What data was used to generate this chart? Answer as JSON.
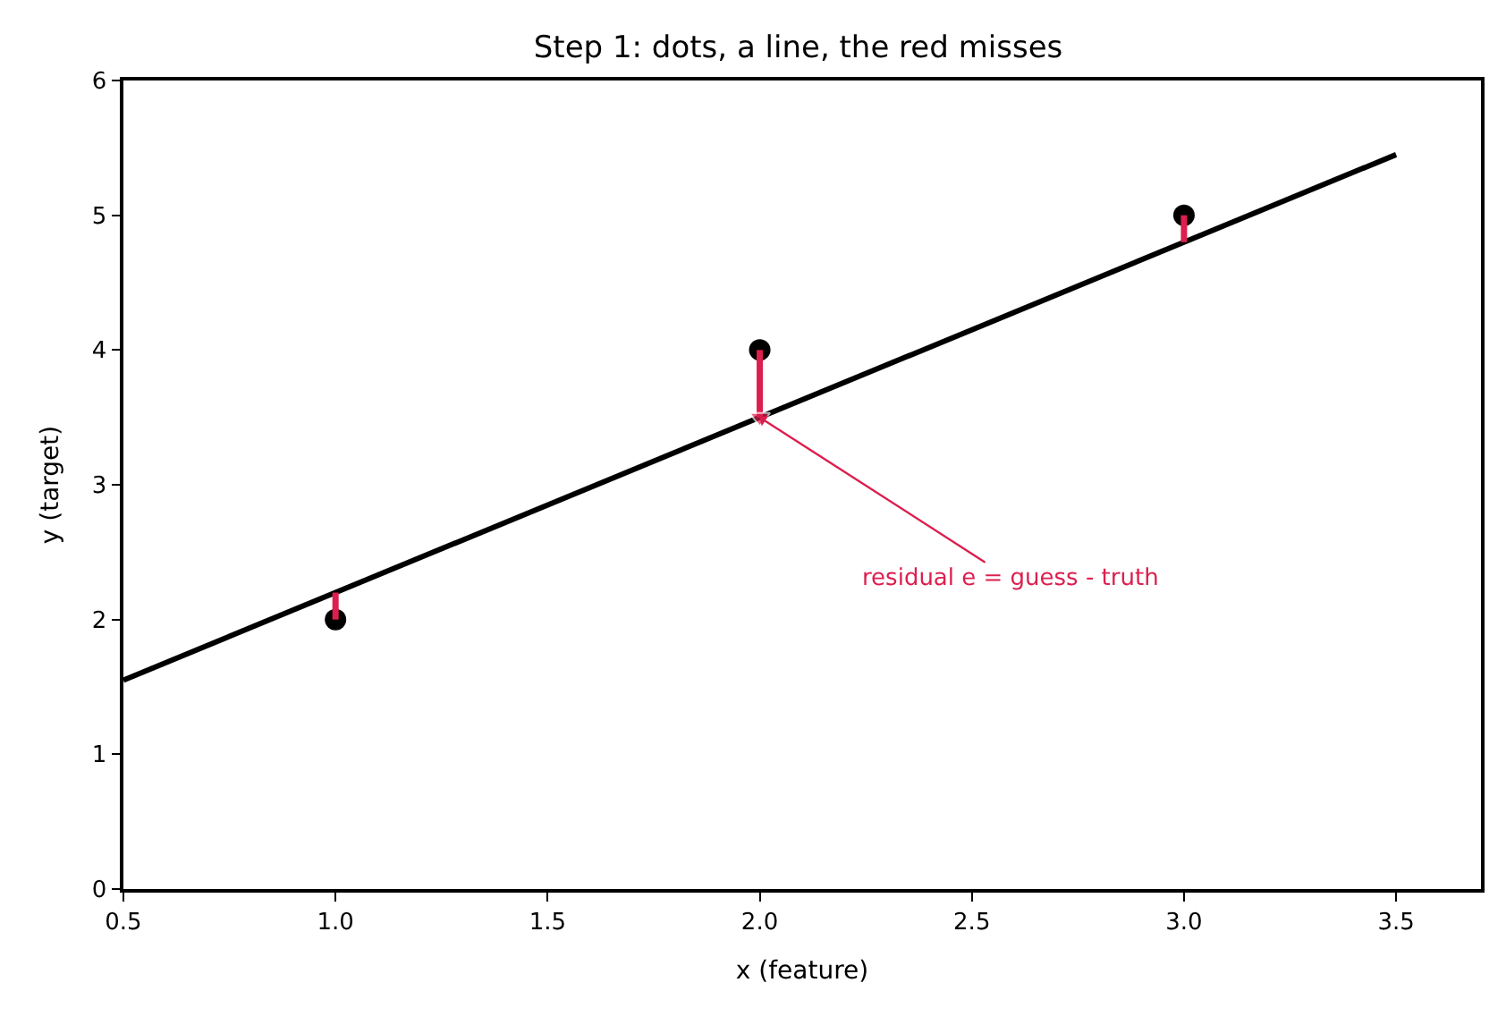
{
  "chart_data": {
    "type": "scatter",
    "title": "Step 1: dots, a line, the red misses",
    "xlabel": "x (feature)",
    "ylabel": "y (target)",
    "series": [
      {
        "color": "#000000",
        "x": [
          1.0,
          2.0,
          3.0
        ],
        "values": [
          2,
          4,
          5
        ],
        "marker": "circle"
      },
      {
        "type": "line",
        "color": "#000000",
        "x": [
          0.5,
          3.5
        ],
        "values": [
          1.55,
          5.45
        ],
        "marker": "none"
      },
      {
        "type": "line",
        "color": "#dc1f4e",
        "x": [
          1.0,
          1.0
        ],
        "values": [
          2,
          2.2
        ],
        "marker": "none"
      },
      {
        "type": "line",
        "color": "#dc1f4e",
        "x": [
          2.0,
          2.0
        ],
        "values": [
          4,
          3.5
        ],
        "marker": "triangle"
      },
      {
        "type": "line",
        "color": "#dc1f4e",
        "x": [
          3.0,
          3.0
        ],
        "values": [
          5,
          4.8
        ],
        "marker": "none"
      }
    ],
    "annotations": [
      {
        "text": "residual e = guess - truth",
        "x": 2.0,
        "y": 3.5
      }
    ],
    "xlim": [
      0.5,
      3.7
    ],
    "xticks": [
      {
        "value": 0.5,
        "label": "0.5"
      },
      {
        "value": 1.0,
        "label": "1.0"
      },
      {
        "value": 1.5,
        "label": "1.5"
      },
      {
        "value": 2.0,
        "label": "2.0"
      },
      {
        "value": 2.5,
        "label": "2.5"
      },
      {
        "value": 3.0,
        "label": "3.0"
      },
      {
        "value": 3.5,
        "label": "3.5"
      }
    ],
    "ylim": [
      0,
      6
    ],
    "yticks": [
      0,
      1,
      2,
      3,
      4,
      5,
      6
    ],
    "line_style": "solid"
  }
}
